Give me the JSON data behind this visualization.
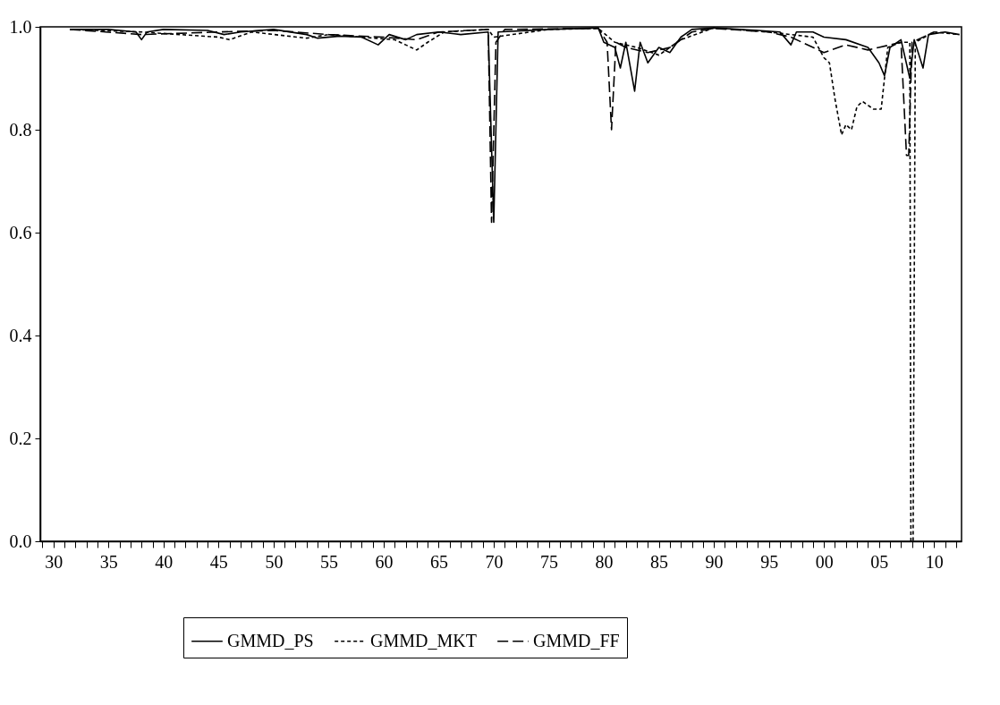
{
  "chart_data": {
    "type": "line",
    "legend": "bottom",
    "grid": false,
    "marker": "none",
    "xlim": [
      1928.8,
      2012.5
    ],
    "ylim": [
      0,
      1
    ],
    "yticks": [
      {
        "value": 0,
        "label": "0.0"
      },
      {
        "value": 0.2,
        "label": "0.2"
      },
      {
        "value": 0.4,
        "label": "0.4"
      },
      {
        "value": 0.6,
        "label": "0.6"
      },
      {
        "value": 0.8,
        "label": "0.8"
      },
      {
        "value": 1,
        "label": "1.0"
      }
    ],
    "xticks": [
      {
        "value": 1929,
        "label": null
      },
      {
        "value": 1930,
        "label": "30"
      },
      {
        "value": 1931,
        "label": null
      },
      {
        "value": 1932,
        "label": null
      },
      {
        "value": 1933,
        "label": null
      },
      {
        "value": 1934,
        "label": null
      },
      {
        "value": 1935,
        "label": "35"
      },
      {
        "value": 1936,
        "label": null
      },
      {
        "value": 1937,
        "label": null
      },
      {
        "value": 1938,
        "label": null
      },
      {
        "value": 1939,
        "label": null
      },
      {
        "value": 1940,
        "label": "40"
      },
      {
        "value": 1941,
        "label": null
      },
      {
        "value": 1942,
        "label": null
      },
      {
        "value": 1943,
        "label": null
      },
      {
        "value": 1944,
        "label": null
      },
      {
        "value": 1945,
        "label": "45"
      },
      {
        "value": 1946,
        "label": null
      },
      {
        "value": 1947,
        "label": null
      },
      {
        "value": 1948,
        "label": null
      },
      {
        "value": 1949,
        "label": null
      },
      {
        "value": 1950,
        "label": "50"
      },
      {
        "value": 1951,
        "label": null
      },
      {
        "value": 1952,
        "label": null
      },
      {
        "value": 1953,
        "label": null
      },
      {
        "value": 1954,
        "label": null
      },
      {
        "value": 1955,
        "label": "55"
      },
      {
        "value": 1956,
        "label": null
      },
      {
        "value": 1957,
        "label": null
      },
      {
        "value": 1958,
        "label": null
      },
      {
        "value": 1959,
        "label": null
      },
      {
        "value": 1960,
        "label": "60"
      },
      {
        "value": 1961,
        "label": null
      },
      {
        "value": 1962,
        "label": null
      },
      {
        "value": 1963,
        "label": null
      },
      {
        "value": 1964,
        "label": null
      },
      {
        "value": 1965,
        "label": "65"
      },
      {
        "value": 1966,
        "label": null
      },
      {
        "value": 1967,
        "label": null
      },
      {
        "value": 1968,
        "label": null
      },
      {
        "value": 1969,
        "label": null
      },
      {
        "value": 1970,
        "label": "70"
      },
      {
        "value": 1971,
        "label": null
      },
      {
        "value": 1972,
        "label": null
      },
      {
        "value": 1973,
        "label": null
      },
      {
        "value": 1974,
        "label": null
      },
      {
        "value": 1975,
        "label": "75"
      },
      {
        "value": 1976,
        "label": null
      },
      {
        "value": 1977,
        "label": null
      },
      {
        "value": 1978,
        "label": null
      },
      {
        "value": 1979,
        "label": null
      },
      {
        "value": 1980,
        "label": "80"
      },
      {
        "value": 1981,
        "label": null
      },
      {
        "value": 1982,
        "label": null
      },
      {
        "value": 1983,
        "label": null
      },
      {
        "value": 1984,
        "label": null
      },
      {
        "value": 1985,
        "label": "85"
      },
      {
        "value": 1986,
        "label": null
      },
      {
        "value": 1987,
        "label": null
      },
      {
        "value": 1988,
        "label": null
      },
      {
        "value": 1989,
        "label": null
      },
      {
        "value": 1990,
        "label": "90"
      },
      {
        "value": 1991,
        "label": null
      },
      {
        "value": 1992,
        "label": null
      },
      {
        "value": 1993,
        "label": null
      },
      {
        "value": 1994,
        "label": null
      },
      {
        "value": 1995,
        "label": "95"
      },
      {
        "value": 1996,
        "label": null
      },
      {
        "value": 1997,
        "label": null
      },
      {
        "value": 1998,
        "label": null
      },
      {
        "value": 1999,
        "label": null
      },
      {
        "value": 2000,
        "label": "00"
      },
      {
        "value": 2001,
        "label": null
      },
      {
        "value": 2002,
        "label": null
      },
      {
        "value": 2003,
        "label": null
      },
      {
        "value": 2004,
        "label": null
      },
      {
        "value": 2005,
        "label": "05"
      },
      {
        "value": 2006,
        "label": null
      },
      {
        "value": 2007,
        "label": null
      },
      {
        "value": 2008,
        "label": null
      },
      {
        "value": 2009,
        "label": null
      },
      {
        "value": 2010,
        "label": "10"
      },
      {
        "value": 2011,
        "label": null
      },
      {
        "value": 2012,
        "label": null
      }
    ],
    "series": [
      {
        "name": "GMMD_PS",
        "color": "#000000",
        "line_style": "solid",
        "x": [
          1931.5,
          1935,
          1937.5,
          1938,
          1938.5,
          1940,
          1944,
          1945.5,
          1947,
          1950,
          1953,
          1954,
          1956,
          1958,
          1959.5,
          1960.5,
          1962,
          1963,
          1965,
          1967,
          1969.5,
          1970,
          1970.4,
          1975,
          1979.5,
          1980,
          1981,
          1981.5,
          1982,
          1982.8,
          1983.3,
          1984,
          1985,
          1986,
          1987,
          1988,
          1990,
          1994,
          1996,
          1997,
          1997.5,
          1999,
          2000,
          2002,
          2004,
          2005,
          2005.5,
          2006,
          2007,
          2007.8,
          2008.2,
          2009,
          2009.5,
          2011,
          2012.3
        ],
        "values": [
          0.995,
          0.995,
          0.99,
          0.975,
          0.99,
          0.995,
          0.993,
          0.985,
          0.99,
          0.995,
          0.985,
          0.978,
          0.982,
          0.98,
          0.965,
          0.985,
          0.975,
          0.985,
          0.99,
          0.985,
          0.99,
          0.62,
          0.99,
          0.995,
          0.998,
          0.97,
          0.96,
          0.92,
          0.97,
          0.875,
          0.97,
          0.93,
          0.96,
          0.95,
          0.98,
          0.995,
          0.998,
          0.993,
          0.99,
          0.965,
          0.99,
          0.99,
          0.98,
          0.975,
          0.96,
          0.93,
          0.905,
          0.96,
          0.975,
          0.9,
          0.975,
          0.92,
          0.985,
          0.99,
          0.985
        ]
      },
      {
        "name": "GMMD_MKT",
        "color": "#000000",
        "line_style": "dotted",
        "x": [
          1931.5,
          1938,
          1945,
          1946,
          1948,
          1953,
          1955,
          1958,
          1961,
          1962,
          1963,
          1964,
          1965.5,
          1969.5,
          1970,
          1975,
          1979.5,
          1981,
          1983,
          1985,
          1987,
          1990,
          1995,
          1997,
          1999,
          2000,
          2000.5,
          2001,
          2001.6,
          2002,
          2002.5,
          2003,
          2003.5,
          2004.5,
          2005.2,
          2005.8,
          2007,
          2007.8,
          2007.9,
          2008.1,
          2008.3,
          2010,
          2012.3
        ],
        "values": [
          0.995,
          0.99,
          0.98,
          0.975,
          0.99,
          0.978,
          0.985,
          0.98,
          0.975,
          0.965,
          0.955,
          0.97,
          0.99,
          0.995,
          0.98,
          0.995,
          0.997,
          0.97,
          0.96,
          0.945,
          0.975,
          0.998,
          0.99,
          0.985,
          0.98,
          0.94,
          0.93,
          0.86,
          0.79,
          0.81,
          0.8,
          0.845,
          0.855,
          0.84,
          0.84,
          0.96,
          0.97,
          0.97,
          0.0,
          0.0,
          0.97,
          0.99,
          0.985
        ]
      },
      {
        "name": "GMMD_FF",
        "color": "#000000",
        "line_style": "dashed",
        "x": [
          1931.5,
          1938,
          1945,
          1950,
          1955,
          1960,
          1963,
          1965,
          1969.5,
          1969.8,
          1970.2,
          1971,
          1979.5,
          1980.3,
          1980.7,
          1981.1,
          1982,
          1984,
          1986,
          1988,
          1990,
          1995,
          1997,
          2000,
          2002,
          2004,
          2005,
          2007,
          2007.5,
          2007.7,
          2008,
          2010
        ],
        "values": [
          0.995,
          0.985,
          0.99,
          0.993,
          0.985,
          0.98,
          0.975,
          0.99,
          0.995,
          0.62,
          0.97,
          0.995,
          0.997,
          0.97,
          0.8,
          0.97,
          0.96,
          0.95,
          0.96,
          0.99,
          0.997,
          0.99,
          0.98,
          0.95,
          0.965,
          0.955,
          0.96,
          0.97,
          0.75,
          0.75,
          0.97,
          0.99
        ]
      }
    ]
  }
}
